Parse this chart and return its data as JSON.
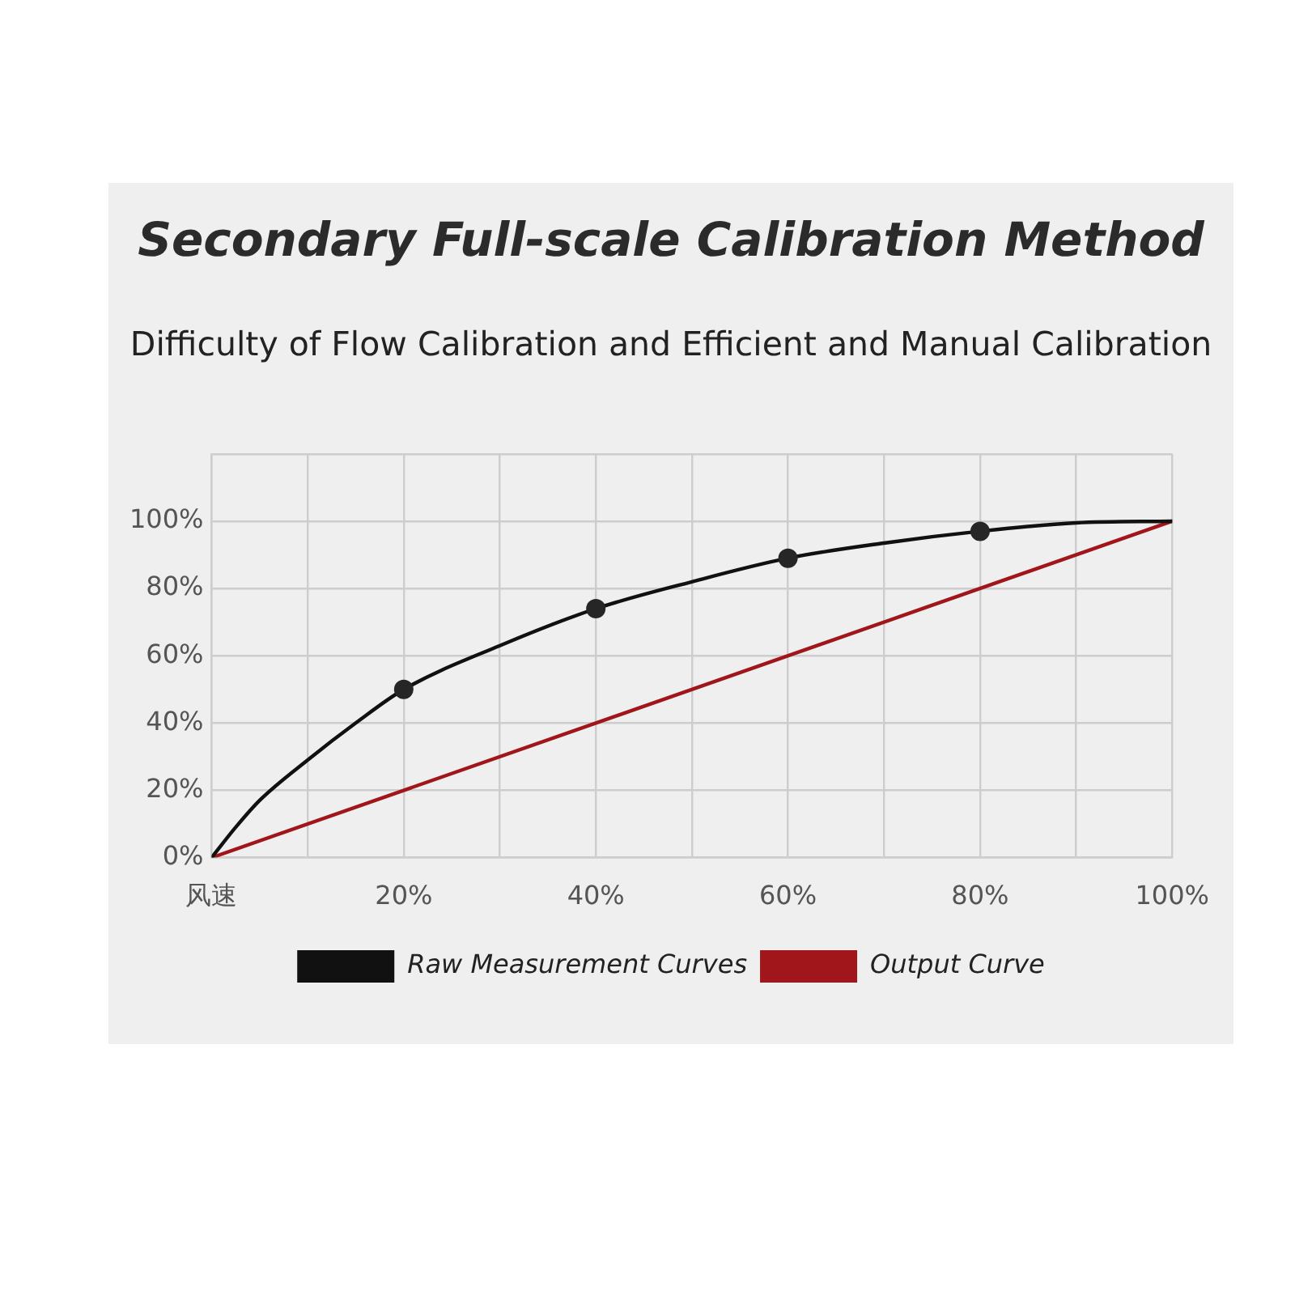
{
  "chart_data": {
    "type": "line",
    "title": "Secondary Full-scale Calibration Method",
    "subtitle": "Difficulty of Flow Calibration and Efficient and Manual Calibration",
    "xlim": [
      0,
      100
    ],
    "xticks": [
      {
        "value": 0,
        "label": "风速"
      },
      {
        "value": 10,
        "label": null
      },
      {
        "value": 20,
        "label": "20%"
      },
      {
        "value": 30,
        "label": null
      },
      {
        "value": 40,
        "label": "40%"
      },
      {
        "value": 50,
        "label": null
      },
      {
        "value": 60,
        "label": "60%"
      },
      {
        "value": 70,
        "label": null
      },
      {
        "value": 80,
        "label": "80%"
      },
      {
        "value": 90,
        "label": null
      },
      {
        "value": 100,
        "label": "100%"
      }
    ],
    "ylim": [
      0,
      120
    ],
    "yticks": [
      {
        "value": 0,
        "label": "0%"
      },
      {
        "value": 20,
        "label": "20%"
      },
      {
        "value": 40,
        "label": "40%"
      },
      {
        "value": 60,
        "label": "60%"
      },
      {
        "value": 80,
        "label": "80%"
      },
      {
        "value": 100,
        "label": "100%"
      },
      {
        "value": 120,
        "label": null
      }
    ],
    "grid": true,
    "legend": "bottom",
    "series": [
      {
        "name": "Raw Measurement Curves",
        "color": "#111111",
        "marker": "none",
        "x": [
          0,
          2.5,
          5,
          10,
          15,
          20,
          30,
          40,
          50,
          60,
          70,
          80,
          90,
          100
        ],
        "values": [
          0,
          9,
          17,
          29,
          40,
          50,
          63,
          74,
          82,
          89,
          93.5,
          97,
          99.5,
          100
        ]
      },
      {
        "type": "scatter",
        "color": "#262626",
        "marker": "circle",
        "x": [
          20,
          40,
          60,
          80
        ],
        "values": [
          50,
          74,
          89,
          97
        ]
      },
      {
        "name": "Output Curve",
        "color": "#a0161b",
        "marker": "none",
        "x": [
          0,
          100
        ],
        "values": [
          0,
          100
        ]
      }
    ]
  }
}
